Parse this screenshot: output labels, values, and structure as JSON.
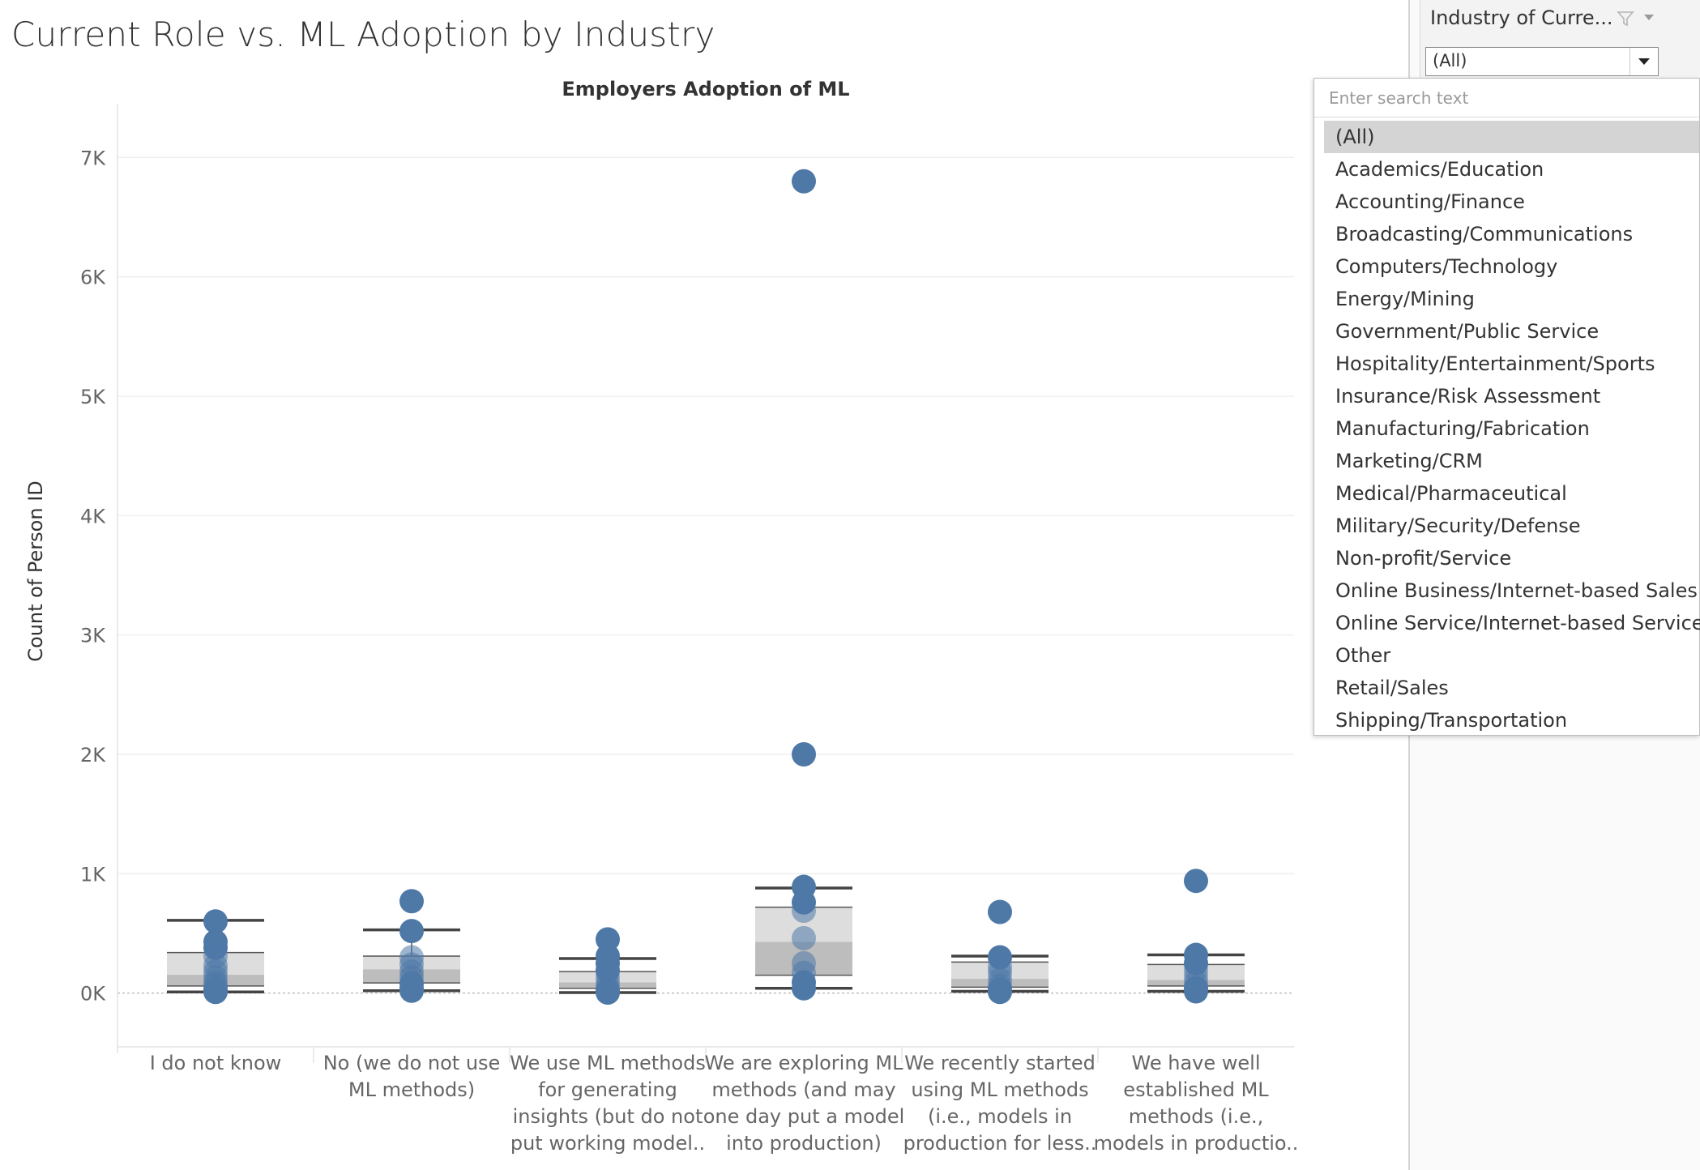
{
  "page_title": "Current Role vs. ML Adoption by Industry",
  "filter": {
    "title": "Industry of Curre...",
    "icon": "filter-icon",
    "selected_value": "(All)",
    "search_placeholder": "Enter search text",
    "options": [
      "(All)",
      "Academics/Education",
      "Accounting/Finance",
      "Broadcasting/Communications",
      "Computers/Technology",
      "Energy/Mining",
      "Government/Public Service",
      "Hospitality/Entertainment/Sports",
      "Insurance/Risk Assessment",
      "Manufacturing/Fabrication",
      "Marketing/CRM",
      "Medical/Pharmaceutical",
      "Military/Security/Defense",
      "Non-profit/Service",
      "Online Business/Internet-based Sales",
      "Online Service/Internet-based Services",
      "Other",
      "Retail/Sales",
      "Shipping/Transportation"
    ],
    "selected_index": 0
  },
  "chart_data": {
    "type": "scatter",
    "title": "Employers Adoption of ML",
    "ylabel": "Count of Person ID",
    "ylim": [
      -450,
      7450
    ],
    "yticks": [
      0,
      1000,
      2000,
      3000,
      4000,
      5000,
      6000,
      7000
    ],
    "ytick_labels": [
      "0K",
      "1K",
      "2K",
      "3K",
      "4K",
      "5K",
      "6K",
      "7K"
    ],
    "grid": true,
    "marker_color": "#4e79a7",
    "categories": [
      [
        "I do not know"
      ],
      [
        "No (we do not use",
        "ML methods)"
      ],
      [
        "We use ML methods",
        "for generating",
        "insights (but do not",
        "put working model.."
      ],
      [
        "We are exploring ML",
        "methods (and may",
        "one day put a model",
        "into production)"
      ],
      [
        "We recently started",
        "using ML methods",
        "(i.e., models in",
        "production for less.."
      ],
      [
        "We have well",
        "established ML",
        "methods (i.e.,",
        "models in productio.."
      ]
    ],
    "boxplots": [
      {
        "min": 10,
        "q1": 60,
        "median": 155,
        "q3": 340,
        "max": 610
      },
      {
        "min": 20,
        "q1": 85,
        "median": 200,
        "q3": 310,
        "max": 530
      },
      {
        "min": 5,
        "q1": 40,
        "median": 90,
        "q3": 180,
        "max": 290
      },
      {
        "min": 40,
        "q1": 150,
        "median": 430,
        "q3": 720,
        "max": 880
      },
      {
        "min": 15,
        "q1": 50,
        "median": 120,
        "q3": 260,
        "max": 310
      },
      {
        "min": 15,
        "q1": 60,
        "median": 110,
        "q3": 240,
        "max": 320
      }
    ],
    "points": [
      [
        600,
        430,
        380,
        310,
        230,
        180,
        130,
        90,
        60,
        30,
        10
      ],
      [
        770,
        520,
        300,
        240,
        180,
        130,
        80,
        40,
        20
      ],
      [
        450,
        310,
        250,
        190,
        140,
        90,
        50,
        20,
        5
      ],
      [
        6800,
        2000,
        890,
        760,
        690,
        460,
        250,
        170,
        90,
        40
      ],
      [
        680,
        300,
        220,
        170,
        110,
        60,
        30,
        10
      ],
      [
        940,
        320,
        250,
        190,
        130,
        80,
        40,
        15
      ]
    ]
  }
}
